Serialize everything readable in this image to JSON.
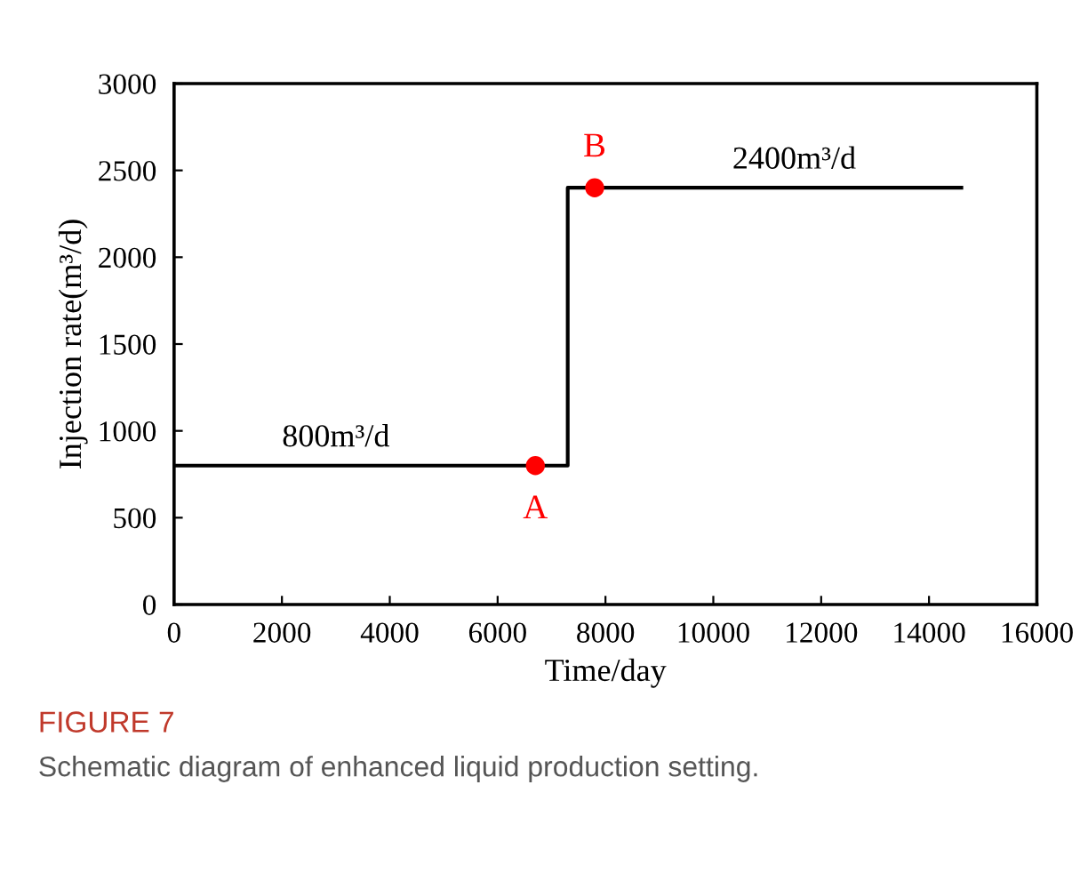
{
  "chart_data": {
    "type": "step",
    "xlabel": "Time/day",
    "ylabel": "Injection rate(m³/d)",
    "title": "FIGURE 7",
    "subtitle": "Schematic diagram of enhanced liquid production setting.",
    "series": [
      {
        "color": "#000000",
        "x": [
          0,
          7300,
          14600
        ],
        "values": [
          800,
          2400,
          2400
        ]
      },
      {
        "type": "scatter",
        "color": "#ff0000",
        "x": [
          6700,
          7800
        ],
        "values": [
          800,
          2400
        ],
        "marker": "circle"
      }
    ],
    "annotations": [
      {
        "text": "A",
        "x": 6700,
        "y": 800
      },
      {
        "text": "B",
        "x": 7800,
        "y": 2400
      },
      {
        "text": "800m³/d",
        "x": 3000,
        "y": 800
      },
      {
        "text": "2400m³/d",
        "x": 11500,
        "y": 2400
      }
    ],
    "xlim": [
      0,
      16000
    ],
    "ylim": [
      0,
      3000
    ],
    "xticks": [
      0,
      2000,
      4000,
      6000,
      8000,
      10000,
      12000,
      14000,
      16000
    ],
    "yticks": [
      0,
      500,
      1000,
      1500,
      2000,
      2500,
      3000
    ],
    "grid": false,
    "legend": false
  }
}
